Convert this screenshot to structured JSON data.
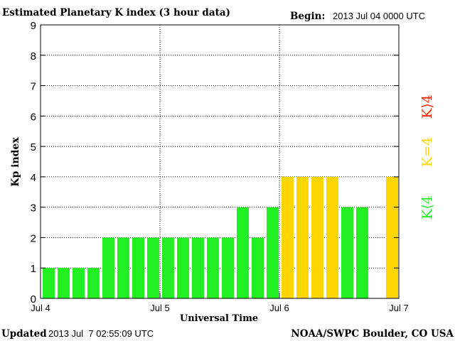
{
  "header": {
    "title": "Estimated Planetary K index (3 hour data)",
    "begin_label": "Begin:",
    "begin_value": "2013 Jul 04 0000 UTC"
  },
  "footer": {
    "updated_label": "Updated",
    "updated_value": "2013 Jul  7 02:55:09 UTC",
    "credit": "NOAA/SWPC Boulder, CO USA"
  },
  "legend": {
    "high": "K⟩4",
    "mid": "K=4",
    "low": "K⟨4"
  },
  "colors": {
    "green": "#22f022",
    "yellow": "#ffd600",
    "red": "#ff2a00",
    "axis": "#000000"
  },
  "chart_data": {
    "type": "bar",
    "xlabel": "Universal Time",
    "ylabel": "Kp index",
    "ylim": [
      0,
      9
    ],
    "yticks": [
      0,
      1,
      2,
      3,
      4,
      5,
      6,
      7,
      8,
      9
    ],
    "xticks": [
      "Jul 4",
      "Jul 5",
      "Jul 6",
      "Jul 7"
    ],
    "grid": "dotted",
    "interval_hours": 3,
    "values": [
      1,
      1,
      1,
      1,
      2,
      2,
      2,
      2,
      2,
      2,
      2,
      2,
      2,
      3,
      2,
      3,
      4,
      4,
      4,
      4,
      3,
      3,
      null,
      4
    ]
  }
}
